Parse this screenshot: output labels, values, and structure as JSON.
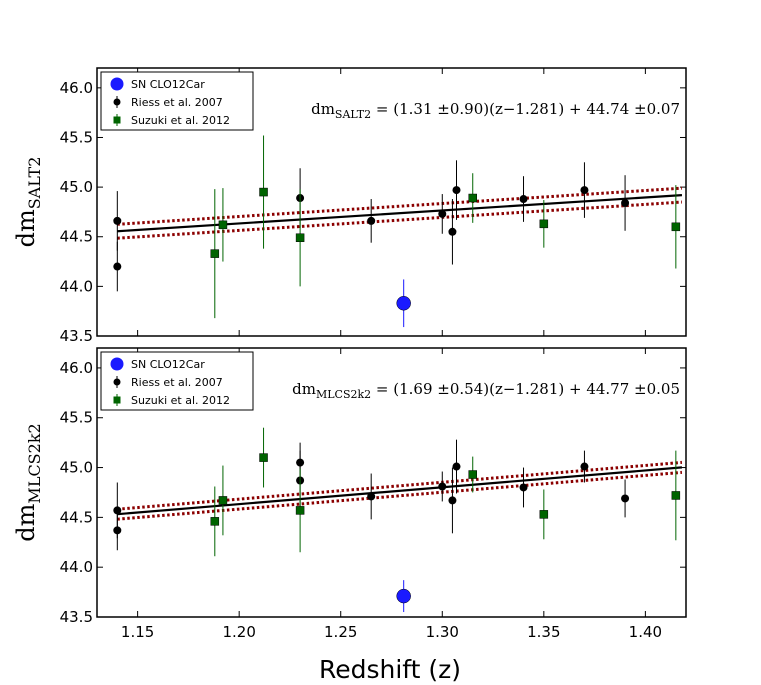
{
  "chart_data": [
    {
      "type": "scatter",
      "ylabel": "dm",
      "ylabel_sub": "SALT2",
      "ylim": [
        43.5,
        46.2
      ],
      "xlim": [
        1.13,
        1.42
      ],
      "yticks": [
        "43.5",
        "44.0",
        "44.5",
        "45.0",
        "45.5",
        "46.0"
      ],
      "xticks": [],
      "legend_position": "top-left",
      "equation": {
        "lhs": "dm",
        "lhs_sub": "SALT2",
        "rhs": "= (1.31 ±0.90)(z−1.281) + 44.74 ±0.07"
      },
      "series": [
        {
          "name": "SN CLO12Car",
          "marker": "circle-large",
          "color": "#1a1aff",
          "x": [
            1.281
          ],
          "y": [
            43.83
          ],
          "yerr": [
            0.24
          ]
        },
        {
          "name": "Riess et al. 2007",
          "marker": "circle",
          "color": "#000000",
          "x": [
            1.14,
            1.14,
            1.23,
            1.265,
            1.3,
            1.305,
            1.307,
            1.34,
            1.37,
            1.39
          ],
          "y": [
            44.2,
            44.66,
            44.89,
            44.66,
            44.73,
            44.55,
            44.97,
            44.88,
            44.97,
            44.84
          ],
          "yerr": [
            0.25,
            0.3,
            0.3,
            0.22,
            0.2,
            0.33,
            0.3,
            0.23,
            0.28,
            0.28
          ]
        },
        {
          "name": "Suzuki et al. 2012",
          "marker": "square",
          "color": "#006400",
          "x": [
            1.188,
            1.192,
            1.212,
            1.23,
            1.315,
            1.35,
            1.415
          ],
          "y": [
            44.33,
            44.62,
            44.95,
            44.49,
            44.89,
            44.63,
            44.6
          ],
          "yerr": [
            0.65,
            0.37,
            0.57,
            0.49,
            0.25,
            0.24,
            0.42
          ]
        }
      ],
      "fit": {
        "slope": 1.31,
        "intercept": 44.74,
        "pivot": 1.281,
        "band": [
          0.07,
          0.07
        ]
      }
    },
    {
      "type": "scatter",
      "ylabel": "dm",
      "ylabel_sub": "MLCS2k2",
      "ylim": [
        43.5,
        46.2
      ],
      "xlim": [
        1.13,
        1.42
      ],
      "yticks": [
        "43.5",
        "44.0",
        "44.5",
        "45.0",
        "45.5",
        "46.0"
      ],
      "xticks": [
        "1.15",
        "1.20",
        "1.25",
        "1.30",
        "1.35",
        "1.40"
      ],
      "xlabel": "Redshift (z)",
      "legend_position": "top-left",
      "equation": {
        "lhs": "dm",
        "lhs_sub": "MLCS2k2",
        "rhs": "= (1.69 ±0.54)(z−1.281) + 44.77 ±0.05"
      },
      "series": [
        {
          "name": "SN CLO12Car",
          "marker": "circle-large",
          "color": "#1a1aff",
          "x": [
            1.281
          ],
          "y": [
            43.71
          ],
          "yerr": [
            0.16
          ]
        },
        {
          "name": "Riess et al. 2007",
          "marker": "circle",
          "color": "#000000",
          "x": [
            1.14,
            1.14,
            1.23,
            1.23,
            1.265,
            1.3,
            1.305,
            1.307,
            1.34,
            1.37,
            1.39
          ],
          "y": [
            44.37,
            44.57,
            45.05,
            44.87,
            44.71,
            44.81,
            44.67,
            45.01,
            44.8,
            45.01,
            44.69
          ],
          "yerr": [
            0.2,
            0.28,
            0.2,
            0.3,
            0.23,
            0.15,
            0.33,
            0.27,
            0.2,
            0.16,
            0.19
          ]
        },
        {
          "name": "Suzuki et al. 2012",
          "marker": "square",
          "color": "#006400",
          "x": [
            1.188,
            1.192,
            1.212,
            1.23,
            1.315,
            1.35,
            1.415
          ],
          "y": [
            44.46,
            44.67,
            45.1,
            44.57,
            44.93,
            44.53,
            44.72
          ],
          "yerr": [
            0.35,
            0.35,
            0.3,
            0.42,
            0.18,
            0.25,
            0.45
          ]
        }
      ],
      "fit": {
        "slope": 1.69,
        "intercept": 44.77,
        "pivot": 1.281,
        "band": [
          0.05,
          0.05
        ]
      }
    }
  ]
}
